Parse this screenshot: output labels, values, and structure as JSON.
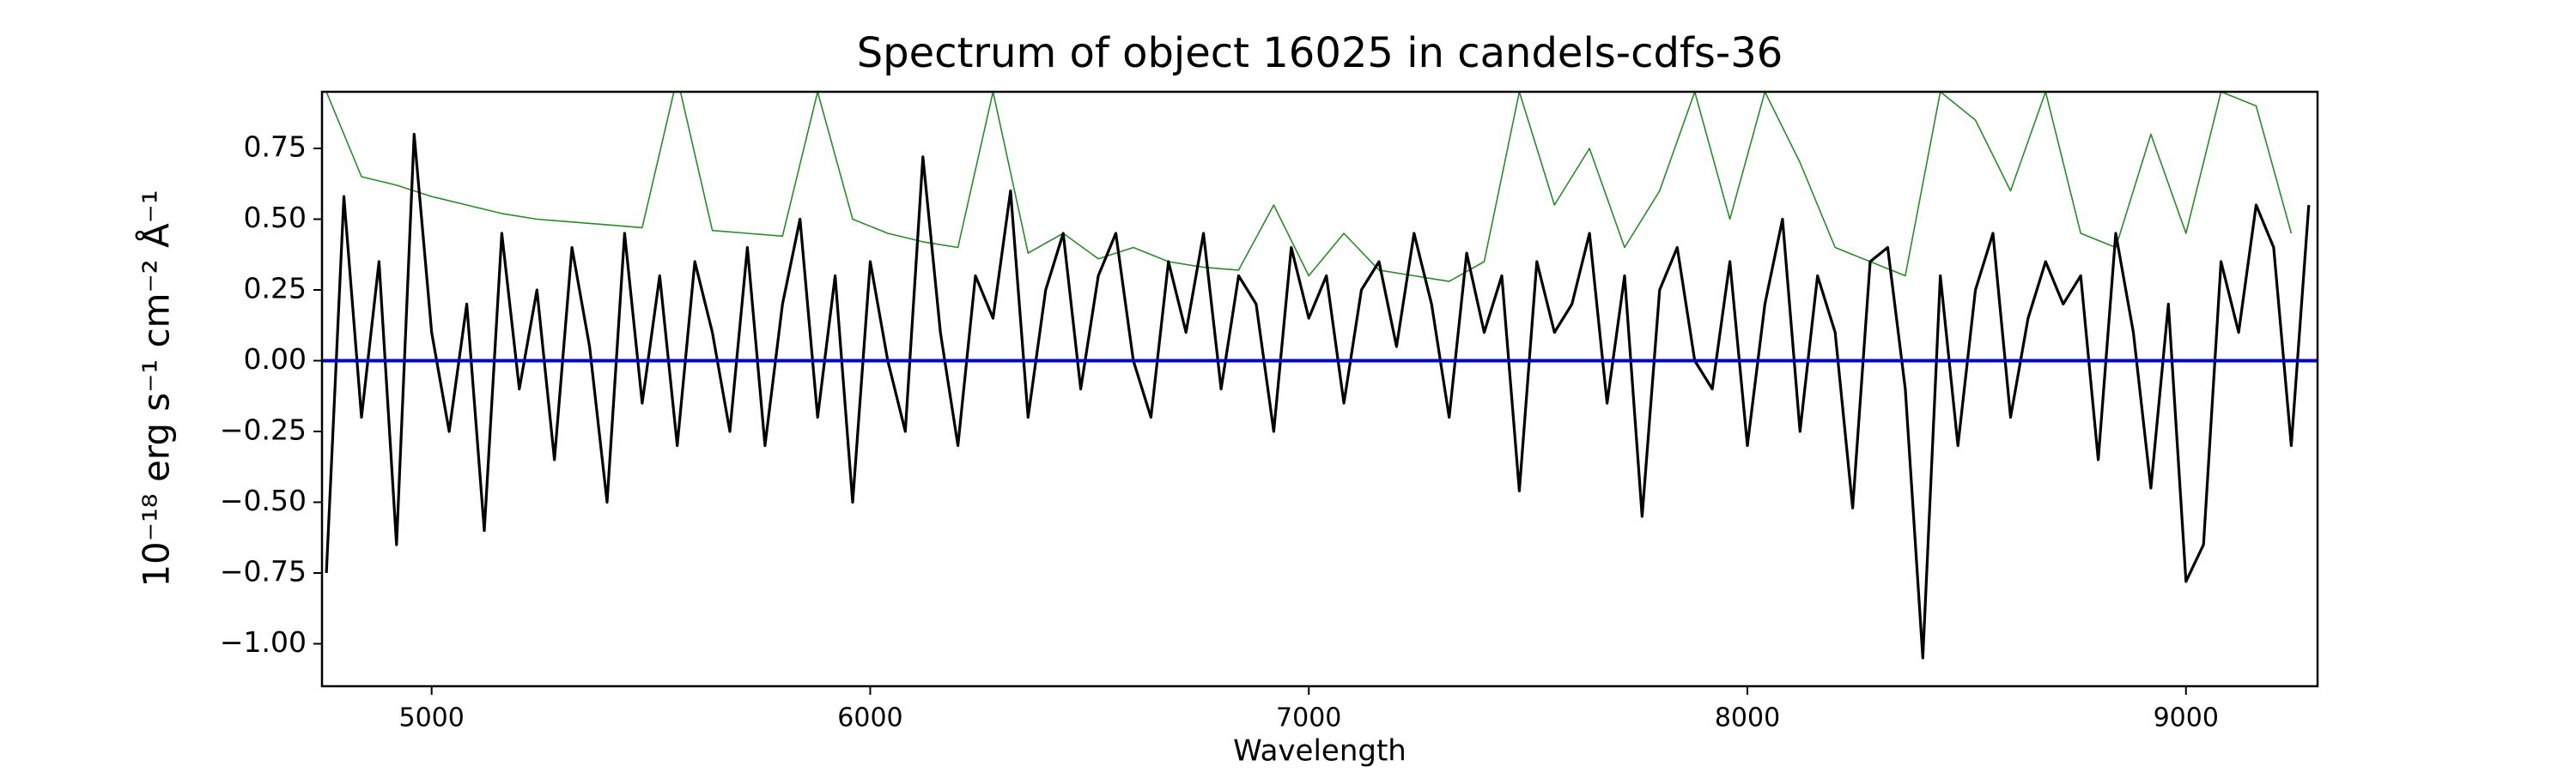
{
  "chart_data": {
    "type": "line",
    "title": "Spectrum of object 16025 in candels-cdfs-36",
    "xlabel": "Wavelength",
    "ylabel": "10⁻¹⁸ erg s⁻¹ cm⁻² Å⁻¹",
    "xlim": [
      4750,
      9300
    ],
    "ylim": [
      -1.15,
      0.95
    ],
    "xticks": [
      5000,
      6000,
      7000,
      8000,
      9000
    ],
    "yticks": [
      {
        "value": 0.75,
        "label": "0.75"
      },
      {
        "value": 0.5,
        "label": "0.50"
      },
      {
        "value": 0.25,
        "label": "0.25"
      },
      {
        "value": 0,
        "label": "0.00"
      },
      {
        "value": -0.25,
        "label": "−0.25"
      },
      {
        "value": -0.5,
        "label": "−0.50"
      },
      {
        "value": -0.75,
        "label": "−0.75"
      },
      {
        "value": -1,
        "label": "−1.00"
      }
    ],
    "series": [
      {
        "color": "#2a8a2a",
        "width": 1.6,
        "x": [
          4760,
          4840,
          4920,
          5000,
          5080,
          5160,
          5240,
          5320,
          5400,
          5480,
          5560,
          5640,
          5720,
          5800,
          5880,
          5960,
          6040,
          6120,
          6200,
          6280,
          6360,
          6440,
          6520,
          6600,
          6680,
          6760,
          6840,
          6920,
          7000,
          7080,
          7160,
          7240,
          7320,
          7400,
          7480,
          7560,
          7640,
          7720,
          7800,
          7880,
          7960,
          8040,
          8120,
          8200,
          8280,
          8360,
          8440,
          8520,
          8600,
          8680,
          8760,
          8840,
          8920,
          9000,
          9080,
          9160,
          9240
        ],
        "values": [
          0.95,
          0.65,
          0.62,
          0.58,
          0.55,
          0.52,
          0.5,
          0.49,
          0.48,
          0.47,
          1.0,
          0.46,
          0.45,
          0.44,
          0.95,
          0.5,
          0.45,
          0.42,
          0.4,
          0.95,
          0.38,
          0.45,
          0.36,
          0.4,
          0.35,
          0.33,
          0.32,
          0.55,
          0.3,
          0.45,
          0.32,
          0.3,
          0.28,
          0.35,
          0.95,
          0.55,
          0.75,
          0.4,
          0.6,
          0.95,
          0.5,
          0.95,
          0.7,
          0.4,
          0.35,
          0.3,
          0.95,
          0.85,
          0.6,
          0.95,
          0.45,
          0.4,
          0.8,
          0.45,
          0.95,
          0.9,
          0.45
        ]
      },
      {
        "color": "#000000",
        "width": 3.2,
        "x": [
          4760,
          4800,
          4840,
          4880,
          4920,
          4960,
          5000,
          5040,
          5080,
          5120,
          5160,
          5200,
          5240,
          5280,
          5320,
          5360,
          5400,
          5440,
          5480,
          5520,
          5560,
          5600,
          5640,
          5680,
          5720,
          5760,
          5800,
          5840,
          5880,
          5920,
          5960,
          6000,
          6040,
          6080,
          6120,
          6160,
          6200,
          6240,
          6280,
          6320,
          6360,
          6400,
          6440,
          6480,
          6520,
          6560,
          6600,
          6640,
          6680,
          6720,
          6760,
          6800,
          6840,
          6880,
          6920,
          6960,
          7000,
          7040,
          7080,
          7120,
          7160,
          7200,
          7240,
          7280,
          7320,
          7360,
          7400,
          7440,
          7480,
          7520,
          7560,
          7600,
          7640,
          7680,
          7720,
          7760,
          7800,
          7840,
          7880,
          7920,
          7960,
          8000,
          8040,
          8080,
          8120,
          8160,
          8200,
          8240,
          8280,
          8320,
          8360,
          8400,
          8440,
          8480,
          8520,
          8560,
          8600,
          8640,
          8680,
          8720,
          8760,
          8800,
          8840,
          8880,
          8920,
          8960,
          9000,
          9040,
          9080,
          9120,
          9160,
          9200,
          9240,
          9280
        ],
        "values": [
          -0.75,
          0.58,
          -0.2,
          0.35,
          -0.65,
          0.8,
          0.1,
          -0.25,
          0.2,
          -0.6,
          0.45,
          -0.1,
          0.25,
          -0.35,
          0.4,
          0.05,
          -0.5,
          0.45,
          -0.15,
          0.3,
          -0.3,
          0.35,
          0.1,
          -0.25,
          0.4,
          -0.3,
          0.2,
          0.5,
          -0.2,
          0.3,
          -0.5,
          0.35,
          0.0,
          -0.25,
          0.72,
          0.1,
          -0.3,
          0.3,
          0.15,
          0.6,
          -0.2,
          0.25,
          0.45,
          -0.1,
          0.3,
          0.45,
          0.0,
          -0.2,
          0.35,
          0.1,
          0.45,
          -0.1,
          0.3,
          0.2,
          -0.25,
          0.4,
          0.15,
          0.3,
          -0.15,
          0.25,
          0.35,
          0.05,
          0.45,
          0.2,
          -0.2,
          0.38,
          0.1,
          0.3,
          -0.46,
          0.35,
          0.1,
          0.2,
          0.45,
          -0.15,
          0.3,
          -0.55,
          0.25,
          0.4,
          0.0,
          -0.1,
          0.35,
          -0.3,
          0.2,
          0.5,
          -0.25,
          0.3,
          0.1,
          -0.52,
          0.35,
          0.4,
          -0.1,
          -1.05,
          0.3,
          -0.3,
          0.25,
          0.45,
          -0.2,
          0.15,
          0.35,
          0.2,
          0.3,
          -0.35,
          0.45,
          0.1,
          -0.45,
          0.2,
          -0.78,
          -0.65,
          0.35,
          0.1,
          0.55,
          0.4,
          -0.3,
          0.55
        ]
      },
      {
        "color": "#0000cc",
        "width": 4,
        "x": [
          4750,
          9300
        ],
        "values": [
          0,
          0
        ]
      }
    ]
  }
}
